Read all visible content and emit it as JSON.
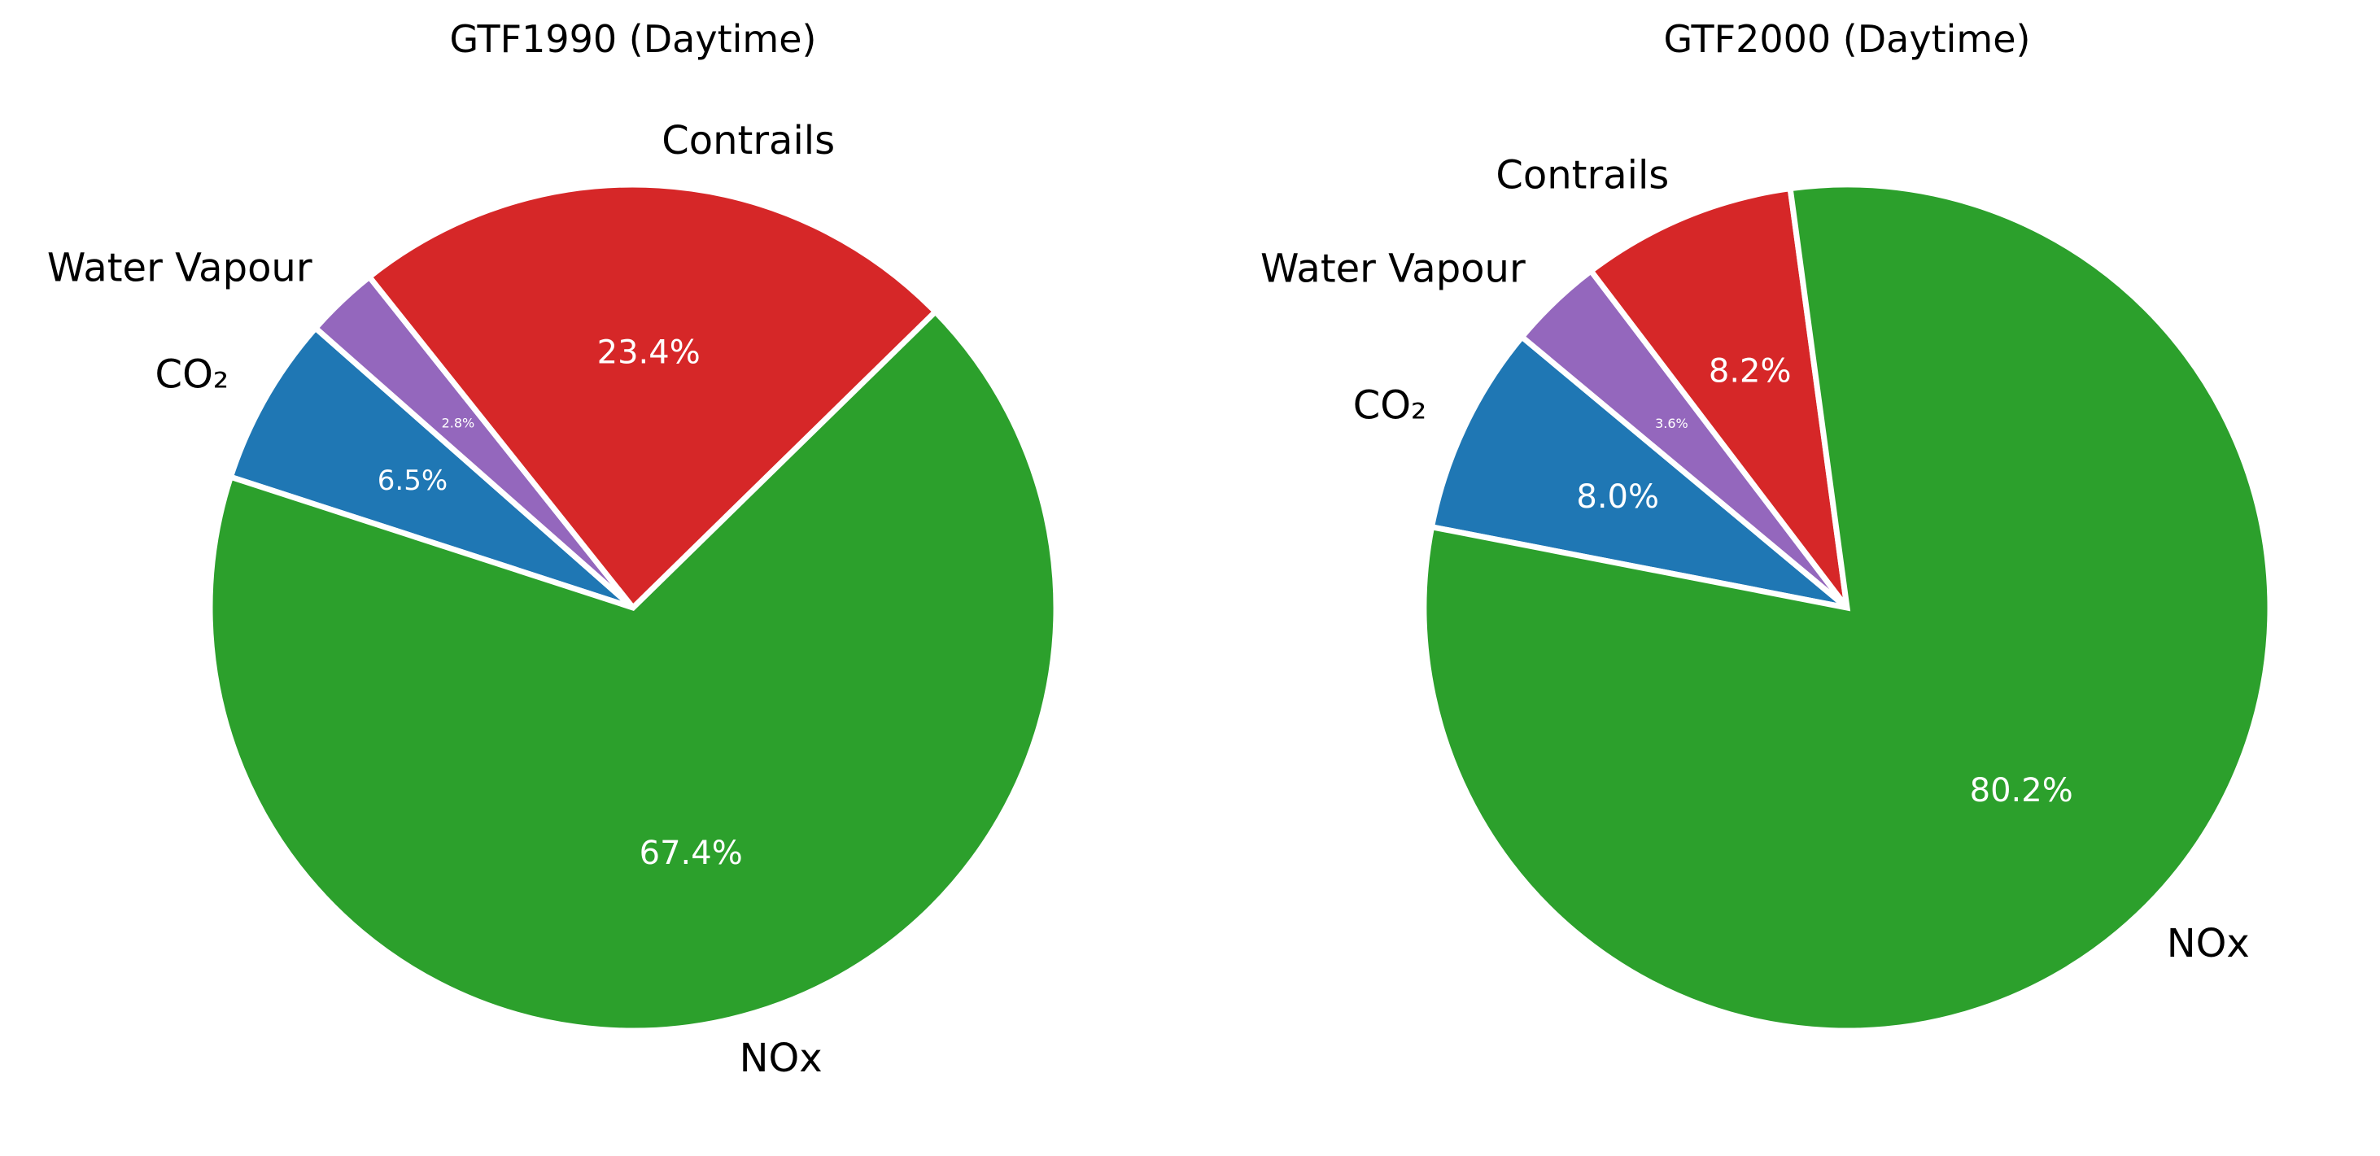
{
  "chart_data": [
    {
      "type": "pie",
      "title": "GTF1990 (Daytime)",
      "categories": [
        "CO₂",
        "Water Vapour",
        "Contrails",
        "NOx"
      ],
      "values": [
        6.5,
        2.8,
        23.4,
        67.4
      ],
      "percent_labels": [
        "6.5%",
        "2.8%",
        "23.4%",
        "67.4%"
      ],
      "colors": [
        "#1f77b4",
        "#9467bd",
        "#d62728",
        "#2ca02c"
      ],
      "start_angle_deg": 162,
      "direction": "clockwise",
      "legend": "none"
    },
    {
      "type": "pie",
      "title": "GTF2000 (Daytime)",
      "categories": [
        "CO₂",
        "Water Vapour",
        "Contrails",
        "NOx"
      ],
      "values": [
        8.0,
        3.6,
        8.2,
        80.2
      ],
      "percent_labels": [
        "8.0%",
        "3.6%",
        "8.2%",
        "80.2%"
      ],
      "colors": [
        "#1f77b4",
        "#9467bd",
        "#d62728",
        "#2ca02c"
      ],
      "start_angle_deg": 169,
      "direction": "clockwise",
      "legend": "none"
    }
  ]
}
